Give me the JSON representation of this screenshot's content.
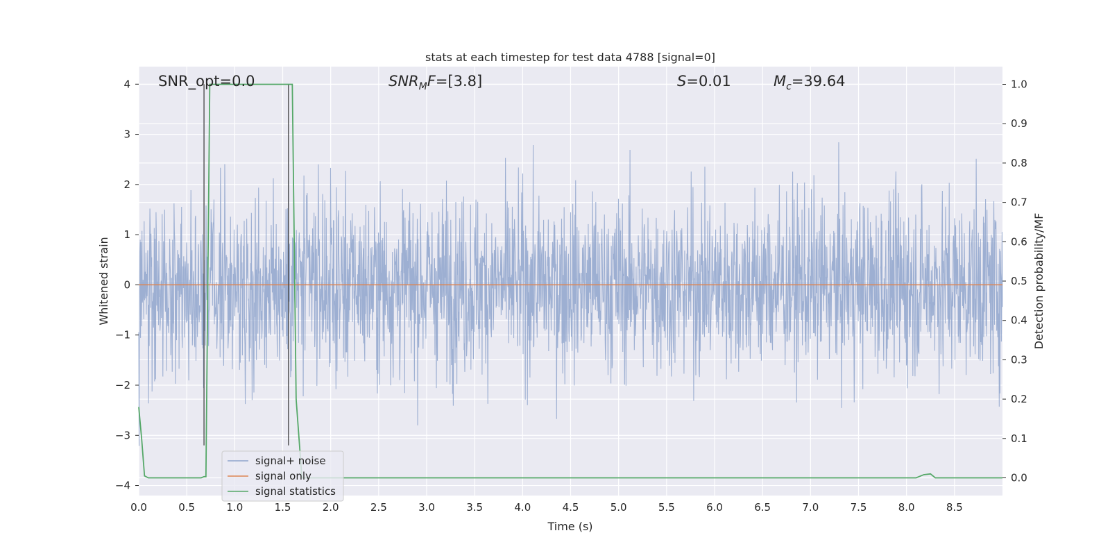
{
  "chart_data": {
    "type": "line",
    "title": "stats at each timestep for test data 4788 [signal=0]",
    "xlabel": "Time (s)",
    "ylabel": "Whitened strain",
    "y2label": "Detection probability/MF",
    "xlim": [
      0.0,
      9.0
    ],
    "ylim": [
      -4.2,
      4.35
    ],
    "y2lim": [
      -0.045,
      1.045
    ],
    "xticks": [
      "0.0",
      "0.5",
      "1.0",
      "1.5",
      "2.0",
      "2.5",
      "3.0",
      "3.5",
      "4.0",
      "4.5",
      "5.0",
      "5.5",
      "6.0",
      "6.5",
      "7.0",
      "7.5",
      "8.0",
      "8.5"
    ],
    "yticks": [
      "−4",
      "−3",
      "−2",
      "−1",
      "0",
      "1",
      "2",
      "3",
      "4"
    ],
    "y2ticks": [
      "0.0",
      "0.1",
      "0.2",
      "0.3",
      "0.4",
      "0.5",
      "0.6",
      "0.7",
      "0.8",
      "0.9",
      "1.0"
    ],
    "grid": true,
    "legend_position": "lower-left",
    "annotations": {
      "snr_opt": "SNR_opt=0.0",
      "snr_mf": "SNR_MF=[3.8]",
      "s": "S=0.01",
      "mc": "M_c=39.64"
    },
    "series": [
      {
        "name": "signal+ noise",
        "color": "#8fa4cd",
        "note": "dense gaussian noise, amplitude about ±1.5 to ±4"
      },
      {
        "name": "signal only",
        "color": "#dd8452",
        "x": [
          0.0,
          9.0
        ],
        "y": [
          0.0,
          0.0
        ]
      },
      {
        "name": "signal statistics",
        "color": "#55a868",
        "axis": "right",
        "x": [
          0.0,
          0.03,
          0.06,
          0.1,
          0.65,
          0.68,
          0.7,
          0.74,
          1.6,
          1.64,
          1.7,
          8.1,
          8.18,
          8.25,
          8.3,
          9.0
        ],
        "y": [
          0.18,
          0.1,
          0.005,
          0.0,
          0.0,
          0.003,
          0.003,
          1.0,
          1.0,
          0.2,
          0.0,
          0.0,
          0.008,
          0.01,
          0.0,
          0.0
        ]
      }
    ],
    "vlines": [
      {
        "x": 0.68,
        "color": "#444444"
      },
      {
        "x": 1.56,
        "color": "#444444"
      }
    ]
  }
}
